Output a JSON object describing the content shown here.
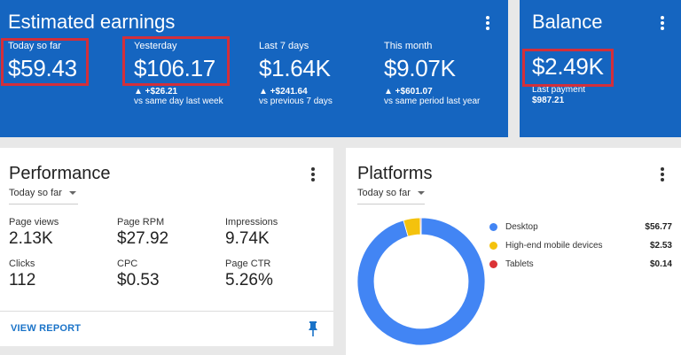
{
  "earnings": {
    "title": "Estimated earnings",
    "metrics": [
      {
        "label": "Today so far",
        "value": "$59.43",
        "change": "",
        "compare": ""
      },
      {
        "label": "Yesterday",
        "value": "$106.17",
        "change": "▲ +$26.21",
        "compare": "vs same day last week"
      },
      {
        "label": "Last 7 days",
        "value": "$1.64K",
        "change": "▲ +$241.64",
        "compare": "vs previous 7 days"
      },
      {
        "label": "This month",
        "value": "$9.07K",
        "change": "▲ +$601.07",
        "compare": "vs same period last year"
      }
    ]
  },
  "balance": {
    "title": "Balance",
    "value": "$2.49K",
    "last_payment_label": "Last payment",
    "last_payment_value": "$987.21"
  },
  "performance": {
    "title": "Performance",
    "range": "Today so far",
    "stats": [
      {
        "label": "Page views",
        "value": "2.13K"
      },
      {
        "label": "Page RPM",
        "value": "$27.92"
      },
      {
        "label": "Impressions",
        "value": "9.74K"
      },
      {
        "label": "Clicks",
        "value": "112"
      },
      {
        "label": "CPC",
        "value": "$0.53"
      },
      {
        "label": "Page CTR",
        "value": "5.26%"
      }
    ],
    "view_report_label": "VIEW REPORT"
  },
  "platforms": {
    "title": "Platforms",
    "range": "Today so far",
    "items": [
      {
        "label": "Desktop",
        "value": "$56.77",
        "amount": 56.77,
        "color": "#4285f4"
      },
      {
        "label": "High-end mobile devices",
        "value": "$2.53",
        "amount": 2.53,
        "color": "#f4c20d"
      },
      {
        "label": "Tablets",
        "value": "$0.14",
        "amount": 0.14,
        "color": "#db3236"
      }
    ]
  },
  "colors": {
    "header_blue": "#1565c0",
    "highlight_red": "#d32f3a",
    "link_blue": "#1a73c8"
  }
}
